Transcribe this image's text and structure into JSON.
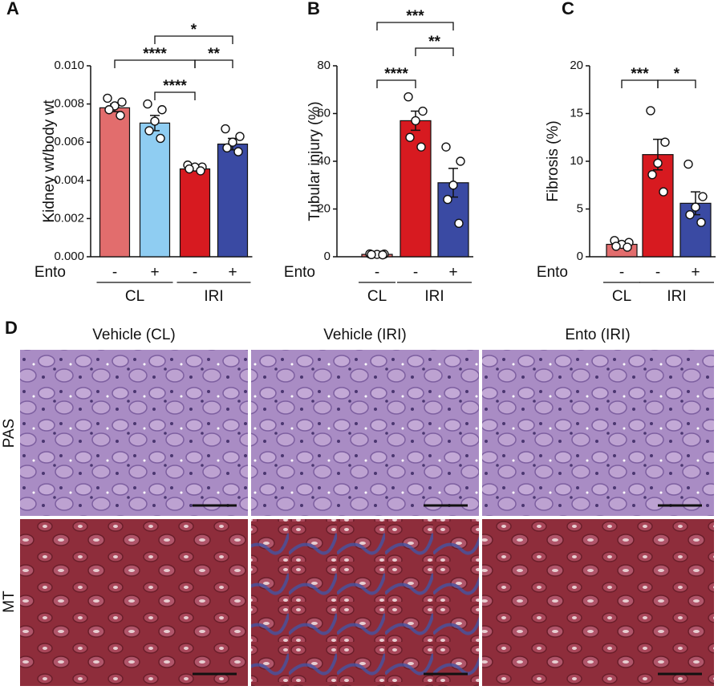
{
  "chart_data": [
    {
      "type": "bar",
      "panel": "A",
      "y_label": "Kidney wt/body wt",
      "categories": [
        "-",
        "+",
        "-",
        "+"
      ],
      "row_label": "Ento",
      "groups": [
        {
          "label": "CL",
          "categories": [
            0,
            1
          ]
        },
        {
          "label": "IRI",
          "categories": [
            2,
            3
          ]
        }
      ],
      "values": [
        0.0078,
        0.007,
        0.0046,
        0.0059
      ],
      "errors": [
        0.0002,
        0.0004,
        0.0001,
        0.0003
      ],
      "colors": [
        "#e26d6d",
        "#8fcdf2",
        "#d71a20",
        "#3a4aa3"
      ],
      "points": [
        [
          0.0083,
          0.0081,
          0.0079,
          0.0077,
          0.0074
        ],
        [
          0.008,
          0.0077,
          0.0071,
          0.0066,
          0.0062
        ],
        [
          0.0048,
          0.0047,
          0.0047,
          0.0046,
          0.0045
        ],
        [
          0.0067,
          0.0063,
          0.006,
          0.0057,
          0.0055
        ]
      ],
      "ylim": [
        0,
        0.01
      ],
      "yticks": [
        {
          "value": 0,
          "label": "0.000"
        },
        {
          "value": 0.002,
          "label": "0.002"
        },
        {
          "value": 0.004,
          "label": "0.004"
        },
        {
          "value": 0.006,
          "label": "0.006"
        },
        {
          "value": 0.008,
          "label": "0.008"
        },
        {
          "value": 0.01,
          "label": "0.010"
        }
      ],
      "significance": [
        {
          "pair": [
            1,
            3
          ],
          "label": "*"
        },
        {
          "pair": [
            0,
            2
          ],
          "label": "****"
        },
        {
          "pair": [
            1,
            2
          ],
          "label": "****"
        },
        {
          "pair": [
            2,
            3
          ],
          "label": "**"
        }
      ]
    },
    {
      "type": "bar",
      "panel": "B",
      "y_label": "Tubular injury (%)",
      "categories": [
        "-",
        "-",
        "+"
      ],
      "row_label": "Ento",
      "groups": [
        {
          "label": "CL",
          "categories": [
            0
          ]
        },
        {
          "label": "IRI",
          "categories": [
            1,
            2
          ]
        }
      ],
      "values": [
        1,
        57,
        31
      ],
      "errors": [
        0.3,
        4,
        6
      ],
      "colors": [
        "#e26d6d",
        "#d71a20",
        "#3a4aa3"
      ],
      "points": [
        [
          1.2,
          1.1,
          1,
          0.9,
          0.8
        ],
        [
          67,
          61,
          57,
          50,
          46
        ],
        [
          46,
          40,
          30,
          24,
          14
        ]
      ],
      "ylim": [
        0,
        80
      ],
      "yticks": [
        0,
        20,
        40,
        60,
        80
      ],
      "significance": [
        {
          "pair": [
            0,
            2
          ],
          "label": "***"
        },
        {
          "pair": [
            1,
            2
          ],
          "label": "**"
        },
        {
          "pair": [
            0,
            1
          ],
          "label": "****"
        }
      ]
    },
    {
      "type": "bar",
      "panel": "C",
      "y_label": "Fibrosis (%)",
      "categories": [
        "-",
        "-",
        "+"
      ],
      "row_label": "Ento",
      "groups": [
        {
          "label": "CL",
          "categories": [
            0
          ]
        },
        {
          "label": "IRI",
          "categories": [
            1,
            2
          ]
        }
      ],
      "values": [
        1.3,
        10.7,
        5.6
      ],
      "errors": [
        0.2,
        1.6,
        1.2
      ],
      "colors": [
        "#e26d6d",
        "#d71a20",
        "#3a4aa3"
      ],
      "points": [
        [
          1.7,
          1.5,
          1.3,
          1.1,
          1.0
        ],
        [
          15.3,
          12.0,
          9.8,
          8.6,
          6.8
        ],
        [
          9.7,
          6.3,
          5.2,
          4.4,
          3.6
        ]
      ],
      "ylim": [
        0,
        20
      ],
      "yticks": [
        0,
        5,
        10,
        15,
        20
      ],
      "significance": [
        {
          "pair": [
            0,
            1
          ],
          "label": "***"
        },
        {
          "pair": [
            1,
            2
          ],
          "label": "*"
        }
      ]
    }
  ],
  "panel_d": {
    "panel": "D",
    "columns": [
      "Vehicle (CL)",
      "Vehicle (IRI)",
      "Ento (IRI)"
    ],
    "rows": [
      "PAS",
      "MT"
    ]
  }
}
